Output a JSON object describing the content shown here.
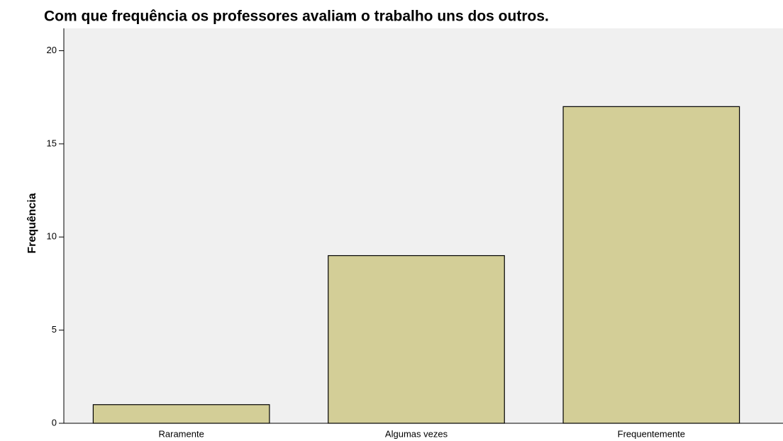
{
  "chart_data": {
    "type": "bar",
    "title": "Com que frequência os professores avaliam o trabalho uns dos outros.",
    "y_label": "Frequência",
    "categories": [
      "Raramente",
      "Algumas vezes",
      "Frequentemente"
    ],
    "values": [
      1,
      9,
      17
    ],
    "color": "#d3ce97",
    "ylim": [
      0,
      21.2
    ],
    "yticks": [
      0,
      5,
      10,
      15,
      20
    ],
    "grid": false
  }
}
